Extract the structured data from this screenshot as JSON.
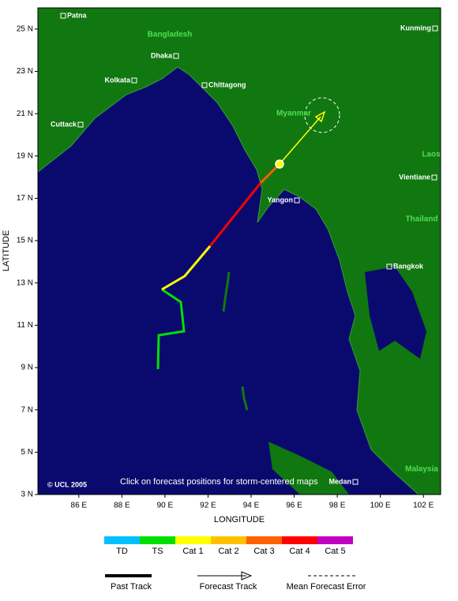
{
  "map": {
    "x_axis_label": "LONGITUDE",
    "y_axis_label": "LATITUDE",
    "xlim": [
      84.1,
      102.8
    ],
    "ylim": [
      3,
      26
    ],
    "xticks": [
      {
        "value": 86,
        "label": "86 E"
      },
      {
        "value": 88,
        "label": "88 E"
      },
      {
        "value": 90,
        "label": "90 E"
      },
      {
        "value": 92,
        "label": "92 E"
      },
      {
        "value": 94,
        "label": "94 E"
      },
      {
        "value": 96,
        "label": "96 E"
      },
      {
        "value": 98,
        "label": "98 E"
      },
      {
        "value": 100,
        "label": "100 E"
      },
      {
        "value": 102,
        "label": "102 E"
      }
    ],
    "yticks": [
      {
        "value": 3,
        "label": "3 N"
      },
      {
        "value": 5,
        "label": "5 N"
      },
      {
        "value": 7,
        "label": "7 N"
      },
      {
        "value": 9,
        "label": "9 N"
      },
      {
        "value": 11,
        "label": "11 N"
      },
      {
        "value": 13,
        "label": "13 N"
      },
      {
        "value": 15,
        "label": "15 N"
      },
      {
        "value": 17,
        "label": "17 N"
      },
      {
        "value": 19,
        "label": "19 N"
      },
      {
        "value": 21,
        "label": "21 N"
      },
      {
        "value": 23,
        "label": "23 N"
      },
      {
        "value": 25,
        "label": "25 N"
      }
    ],
    "cities": [
      "Patna",
      "Dhaka",
      "Kunming",
      "Kolkata",
      "Chittagong",
      "Cuttack",
      "Vientiane",
      "Yangon",
      "Bangkok",
      "Medan"
    ],
    "countries": [
      "Bangladesh",
      "Myanmar",
      "Laos",
      "Thailand",
      "Malaysia"
    ],
    "copyright": "© UCL 2005",
    "hint": "Click on forecast positions for storm-centered maps"
  },
  "legend": {
    "categories": [
      {
        "label": "TD",
        "color": "#00c0ff"
      },
      {
        "label": "TS",
        "color": "#00e000"
      },
      {
        "label": "Cat 1",
        "color": "#ffff00"
      },
      {
        "label": "Cat 2",
        "color": "#ffc000"
      },
      {
        "label": "Cat 3",
        "color": "#ff6000"
      },
      {
        "label": "Cat 4",
        "color": "#ff0000"
      },
      {
        "label": "Cat 5",
        "color": "#c000c0"
      }
    ],
    "past_track": "Past Track",
    "forecast_track": "Forecast Track",
    "mean_forecast_error": "Mean Forecast Error"
  }
}
